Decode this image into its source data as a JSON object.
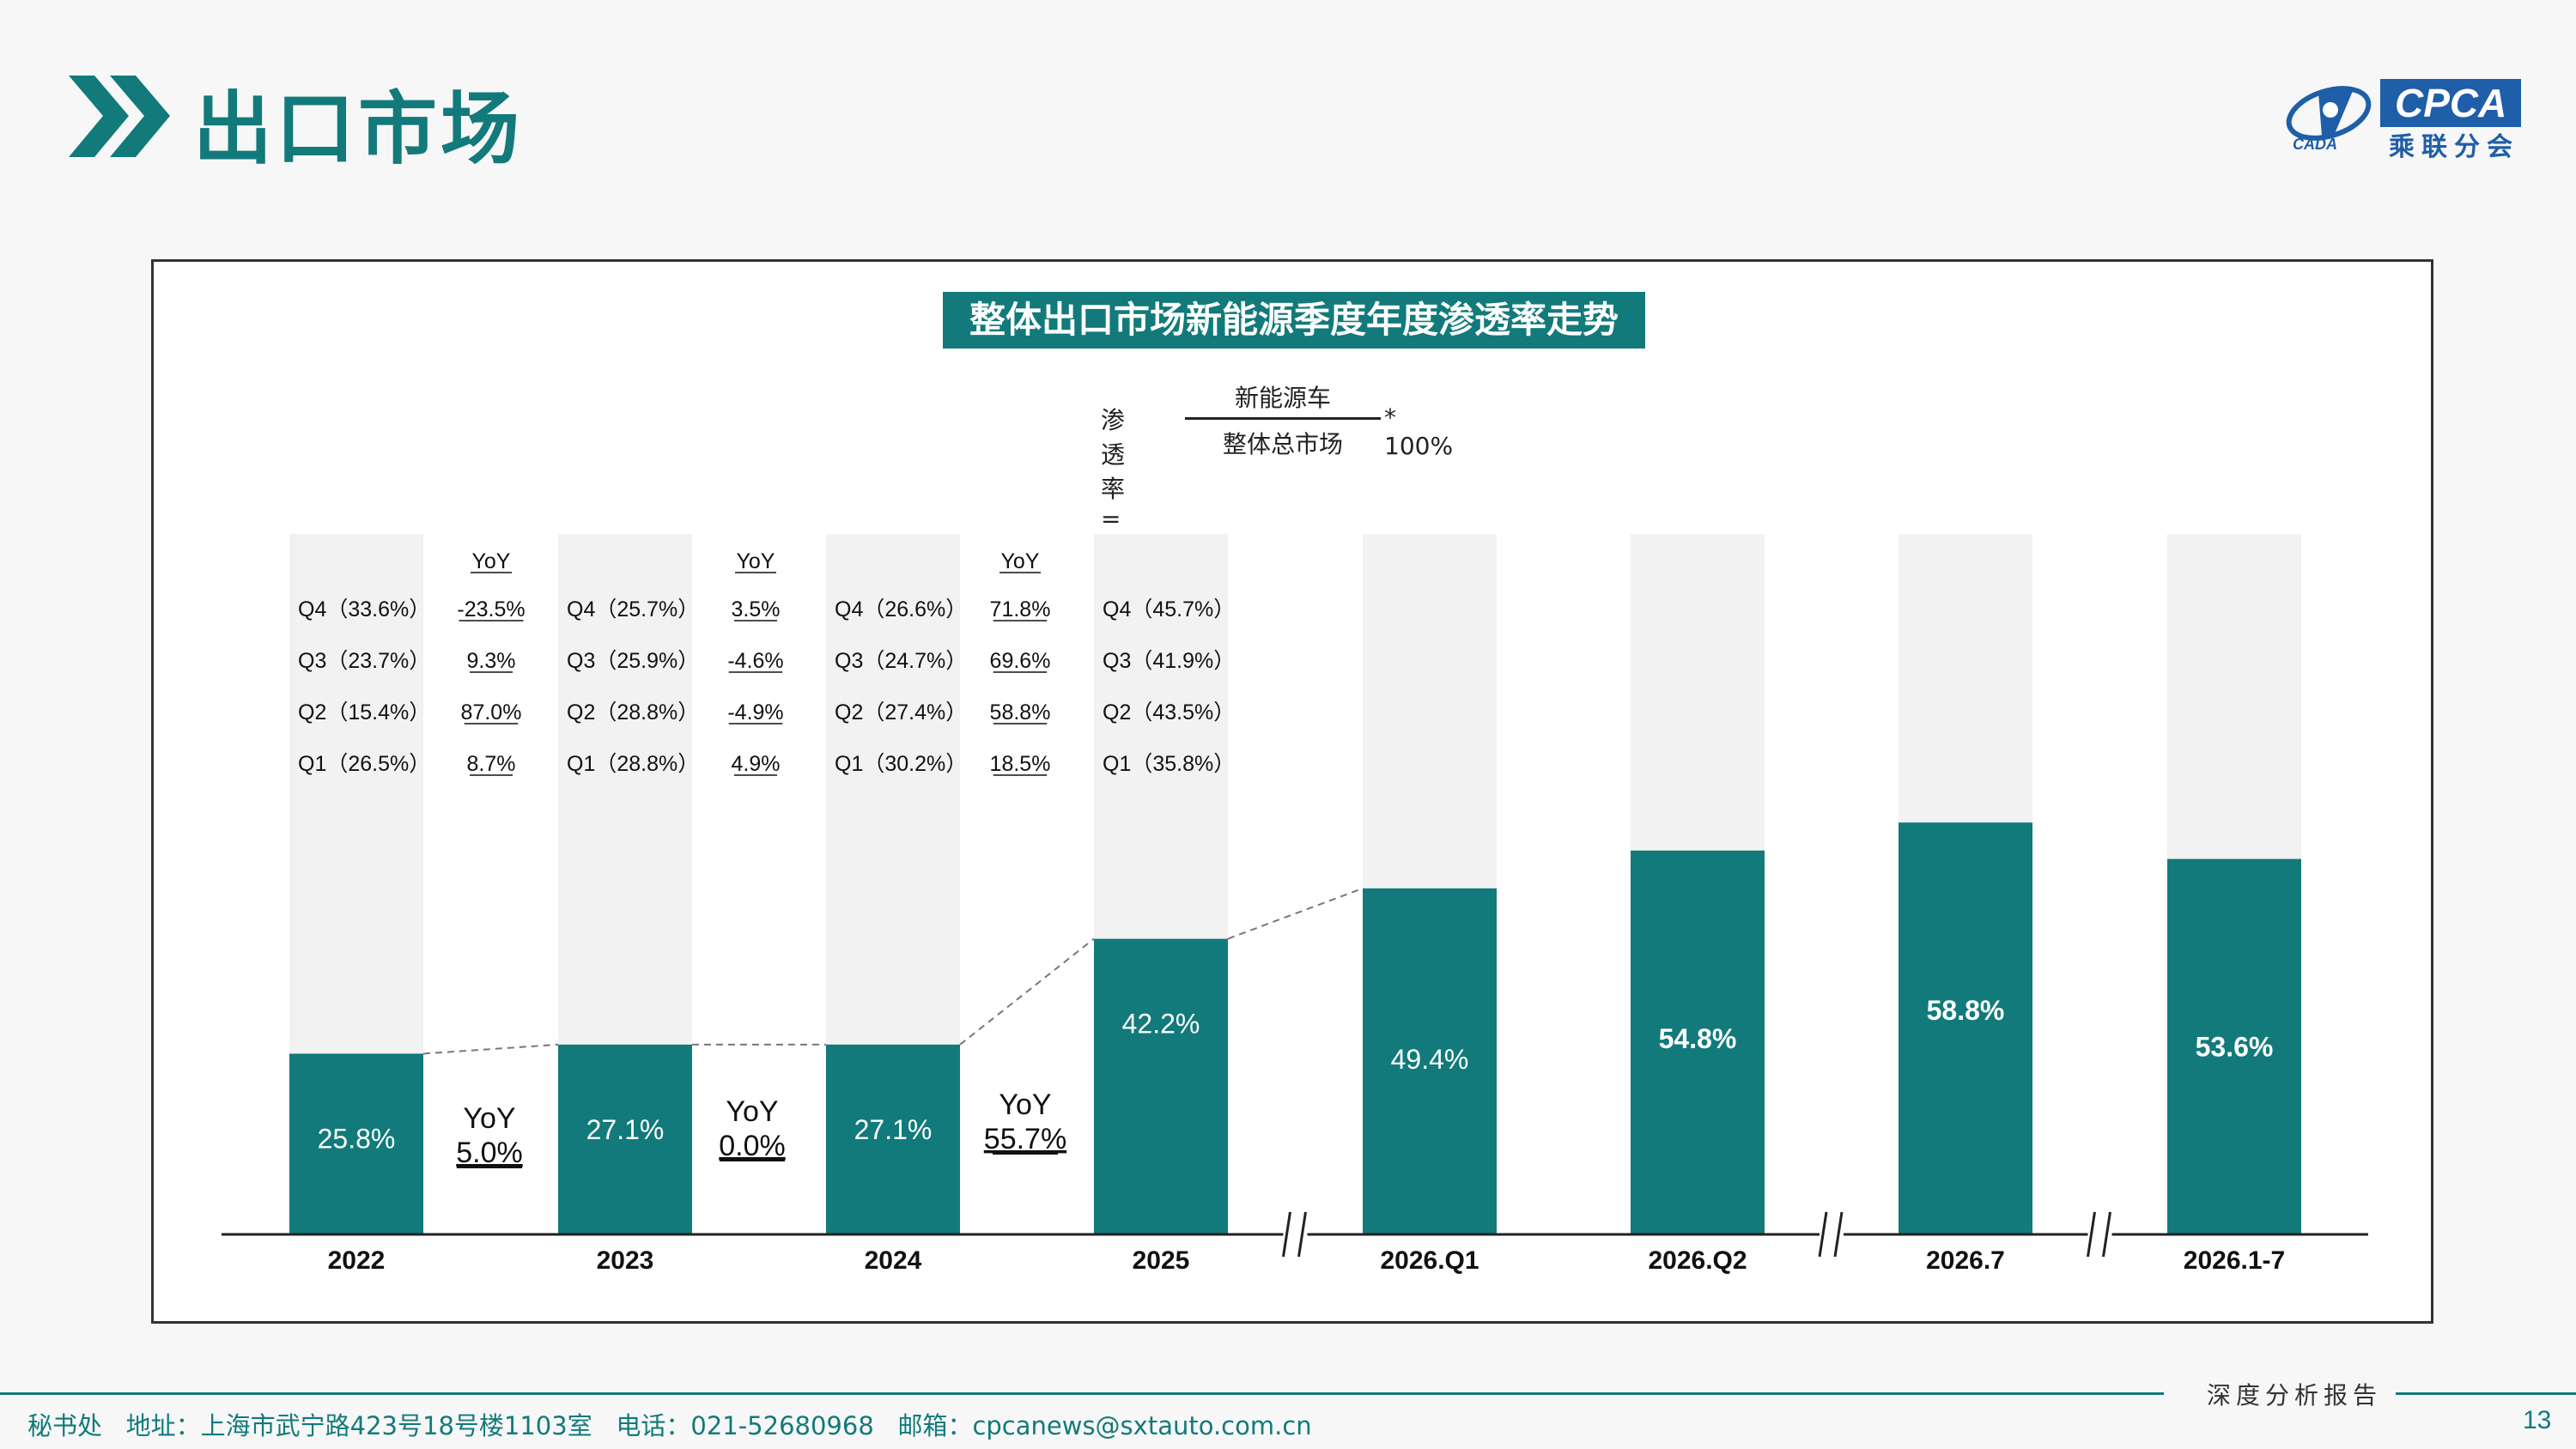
{
  "header": {
    "title": "出口市场",
    "logo": {
      "abbr": "CPCA",
      "name": "乘联分会",
      "sub": "CADA"
    }
  },
  "chart_data": {
    "type": "bar",
    "title": "整体出口市场新能源季度年度渗透率走势",
    "formula": {
      "lhs": "渗透率 =",
      "numerator": "新能源车",
      "denominator": "整体总市场",
      "rhs": "* 100%"
    },
    "categories": [
      "2022",
      "2023",
      "2024",
      "2025",
      "2026.Q1",
      "2026.Q2",
      "2026.7",
      "2026.1-7"
    ],
    "values": [
      25.8,
      27.1,
      27.1,
      42.2,
      49.4,
      54.8,
      58.8,
      53.6
    ],
    "value_labels": [
      "25.8%",
      "27.1%",
      "27.1%",
      "42.2%",
      "49.4%",
      "54.8%",
      "58.8%",
      "53.6%"
    ],
    "ylim": [
      0,
      100
    ],
    "colors": {
      "bar": "#127a7a",
      "background_bar": "#f2f2f2"
    },
    "axis_breaks_after": [
      "2025",
      "2026.Q2",
      "2026.7"
    ],
    "annual_yoy": [
      {
        "label": "YoY",
        "value": "5.0%"
      },
      {
        "label": "YoY",
        "value": "0.0%"
      },
      {
        "label": "YoY",
        "value": "55.7%"
      }
    ],
    "quarter_tables": [
      {
        "rows": [
          "Q4（33.6%）",
          "Q3（23.7%）",
          "Q2（15.4%）",
          "Q1（26.5%）"
        ],
        "yoy": [
          "-23.5%",
          "9.3%",
          "87.0%",
          "8.7%"
        ]
      },
      {
        "rows": [
          "Q4（25.7%）",
          "Q3（25.9%）",
          "Q2（28.8%）",
          "Q1（28.8%）"
        ],
        "yoy": [
          "3.5%",
          "-4.6%",
          "-4.9%",
          "4.9%"
        ]
      },
      {
        "rows": [
          "Q4（26.6%）",
          "Q3（24.7%）",
          "Q2（27.4%）",
          "Q1（30.2%）"
        ],
        "yoy": [
          "71.8%",
          "69.6%",
          "58.8%",
          "18.5%"
        ]
      },
      {
        "rows": [
          "Q4（45.7%）",
          "Q3（41.9%）",
          "Q2（43.5%）",
          "Q1（35.8%）"
        ],
        "yoy": []
      }
    ],
    "yoy_header": "YoY"
  },
  "footer": {
    "contact": "秘书处   地址：上海市武宁路423号18号楼1103室   电话：021-52680968   邮箱：cpcanews@sxtauto.com.cn",
    "report_label": "深度分析报告",
    "page": "13"
  }
}
